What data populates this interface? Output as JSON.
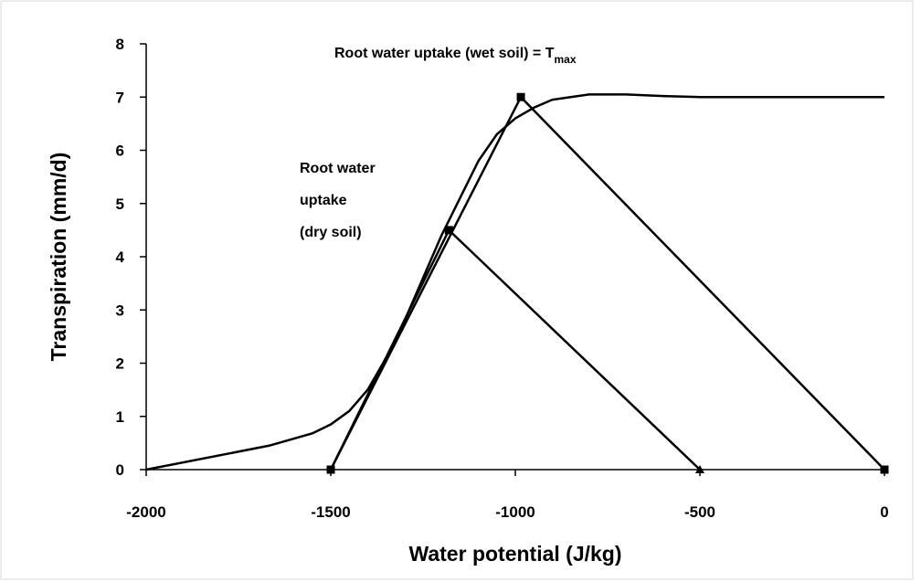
{
  "chart_data": {
    "type": "line",
    "xlabel": "Water potential (J/kg)",
    "ylabel": "Transpiration (mm/d)",
    "annotations": [
      {
        "text": "Root water uptake (wet soil) = T",
        "subscript": "max"
      },
      {
        "lines": [
          "Root water",
          "uptake",
          "(dry soil)"
        ]
      }
    ],
    "xlim": [
      -2000,
      0
    ],
    "xticks": [
      -2000,
      -1500,
      -1000,
      -500,
      0
    ],
    "ylim": [
      0,
      8
    ],
    "yticks": [
      0,
      1,
      2,
      3,
      4,
      5,
      6,
      7,
      8
    ],
    "series": [
      {
        "color": "#000000",
        "x": [
          -2000,
          -1667,
          -1550,
          -1500,
          -1450,
          -1400,
          -1350,
          -1300,
          -1250,
          -1200,
          -1150,
          -1100,
          -1050,
          -1000,
          -950,
          -900,
          -850,
          -800,
          -750,
          -700,
          -600,
          -500,
          -400,
          -300,
          -200,
          -100,
          0
        ],
        "values": [
          0,
          0.45,
          0.68,
          0.85,
          1.1,
          1.5,
          2.1,
          2.8,
          3.6,
          4.4,
          5.1,
          5.8,
          6.3,
          6.6,
          6.8,
          6.95,
          7.0,
          7.05,
          7.05,
          7.05,
          7.02,
          7.0,
          7.0,
          7.0,
          7.0,
          7.0,
          7.0
        ]
      },
      {
        "color": "#000000",
        "x": [
          -1500,
          -985,
          0
        ],
        "values": [
          0,
          7,
          0
        ],
        "markers": [
          "square",
          "square",
          "square"
        ]
      },
      {
        "color": "#000000",
        "x": [
          -1500,
          -1180,
          -500
        ],
        "values": [
          0,
          4.5,
          0
        ],
        "markers": [
          "square",
          "square",
          "triangle"
        ]
      }
    ]
  }
}
